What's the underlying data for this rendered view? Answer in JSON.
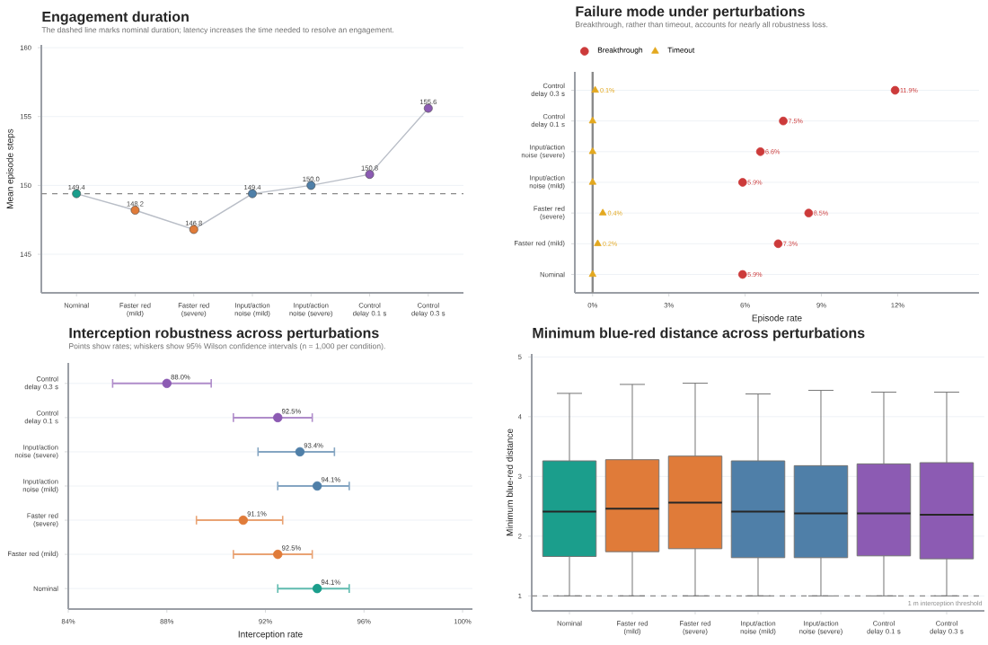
{
  "chart_data": [
    {
      "type": "line",
      "title": "Engagement duration",
      "subtitle": "The dashed line marks nominal duration; latency increases the time needed to resolve an engagement.",
      "ylabel": "Mean episode steps",
      "categories": [
        "Nominal",
        "Faster red (mild)",
        "Faster red (severe)",
        "Input/action noise (mild)",
        "Input/action noise (severe)",
        "Control delay 0.1 s",
        "Control delay 0.3 s"
      ],
      "series": [
        {
          "color": "#b9bec7",
          "colors": [
            "#1b9e8c",
            "#e07b39",
            "#e07b39",
            "#4f7fa8",
            "#4f7fa8",
            "#8c5bb3",
            "#8c5bb3"
          ],
          "values": [
            149.4,
            148.2,
            146.8,
            149.4,
            150.0,
            150.8,
            155.6
          ],
          "value_labels": [
            "149.4",
            "148.2",
            "146.8",
            "149.4",
            "150.0",
            "150.8",
            "155.6"
          ]
        }
      ],
      "marker": "circle",
      "ylim": [
        142.2,
        160.2
      ],
      "yticks": [
        145,
        150,
        155,
        160
      ],
      "grid": "y",
      "ref_lines": [
        {
          "axis": "y",
          "value": 149.4,
          "color": "#8a8a8a",
          "line_style": "dashed"
        }
      ]
    },
    {
      "type": "scatter",
      "orientation": "horizontal",
      "title": "Failure mode under perturbations",
      "subtitle": "Breakthrough, rather than timeout, accounts for nearly all robustness loss.",
      "xlabel": "Episode rate",
      "categories": [
        "Control delay 0.3 s",
        "Control delay 0.1 s",
        "Input/action noise (severe)",
        "Input/action noise (mild)",
        "Faster red (severe)",
        "Faster red (mild)",
        "Nominal"
      ],
      "series": [
        {
          "name": "Breakthrough",
          "color": "#cc3a3a",
          "marker": "circle",
          "values": [
            11.9,
            7.5,
            6.6,
            5.9,
            8.5,
            7.3,
            5.9
          ],
          "value_labels": [
            "11.9%",
            "7.5%",
            "6.6%",
            "5.9%",
            "8.5%",
            "7.3%",
            "5.9%"
          ]
        },
        {
          "name": "Timeout",
          "color": "#e3a81f",
          "marker": "triangle",
          "values": [
            0.1,
            0,
            0,
            0,
            0.4,
            0.2,
            0
          ],
          "value_labels": [
            "0.1%",
            null,
            null,
            null,
            "0.4%",
            "0.2%",
            null
          ]
        }
      ],
      "xlim": [
        -0.7,
        15.2
      ],
      "xticks": [
        {
          "value": 0,
          "label": "0%"
        },
        {
          "value": 3,
          "label": "3%"
        },
        {
          "value": 6,
          "label": "6%"
        },
        {
          "value": 9,
          "label": "9%"
        },
        {
          "value": 12,
          "label": "12%"
        }
      ],
      "grid": "y",
      "legend": "top left",
      "ref_lines": [
        {
          "axis": "x",
          "value": 0,
          "color": "#8a8a8a",
          "line_style": "solid"
        }
      ]
    },
    {
      "type": "scatter",
      "orientation": "horizontal",
      "title": "Interception robustness across perturbations",
      "subtitle": "Points show rates; whiskers show 95% Wilson confidence intervals (n = 1,000 per condition).",
      "xlabel": "Interception rate",
      "categories": [
        "Control delay 0.3 s",
        "Control delay 0.1 s",
        "Input/action noise (severe)",
        "Input/action noise (mild)",
        "Faster red (severe)",
        "Faster red (mild)",
        "Nominal"
      ],
      "values": [
        88.0,
        92.5,
        93.4,
        94.1,
        91.1,
        92.5,
        94.1
      ],
      "errors": [
        [
          85.8,
          89.8
        ],
        [
          90.7,
          93.9
        ],
        [
          91.7,
          94.8
        ],
        [
          92.5,
          95.4
        ],
        [
          89.2,
          92.7
        ],
        [
          90.7,
          93.9
        ],
        [
          92.5,
          95.4
        ]
      ],
      "colors": [
        "#8c5bb3",
        "#8c5bb3",
        "#4f7fa8",
        "#4f7fa8",
        "#e07b39",
        "#e07b39",
        "#1b9e8c"
      ],
      "value_labels": [
        "88.0%",
        "92.5%",
        "93.4%",
        "94.1%",
        "91.1%",
        "92.5%",
        "94.1%"
      ],
      "marker": "circle",
      "xlim": [
        84,
        100.4
      ],
      "xticks": [
        {
          "value": 84,
          "label": "84%"
        },
        {
          "value": 88,
          "label": "88%"
        },
        {
          "value": 92,
          "label": "92%"
        },
        {
          "value": 96,
          "label": "96%"
        },
        {
          "value": 100,
          "label": "100%"
        }
      ],
      "grid": "y"
    },
    {
      "type": "box",
      "title": "Minimum blue-red distance across perturbations",
      "ylabel": "Minimum blue-red distance",
      "categories": [
        "Nominal",
        "Faster red (mild)",
        "Faster red (severe)",
        "Input/action noise (mild)",
        "Input/action noise (severe)",
        "Control delay 0.1 s",
        "Control delay 0.3 s"
      ],
      "colors": [
        "#1b9e8c",
        "#e07b39",
        "#e07b39",
        "#4f7fa8",
        "#4f7fa8",
        "#8c5bb3",
        "#8c5bb3"
      ],
      "boxes": [
        {
          "low": 1.0,
          "q1": 1.66,
          "median": 2.41,
          "q3": 3.26,
          "high": 4.39
        },
        {
          "low": 1.0,
          "q1": 1.74,
          "median": 2.46,
          "q3": 3.28,
          "high": 4.54
        },
        {
          "low": 1.0,
          "q1": 1.79,
          "median": 2.56,
          "q3": 3.34,
          "high": 4.56
        },
        {
          "low": 1.0,
          "q1": 1.64,
          "median": 2.41,
          "q3": 3.26,
          "high": 4.38
        },
        {
          "low": 1.0,
          "q1": 1.64,
          "median": 2.38,
          "q3": 3.18,
          "high": 4.44
        },
        {
          "low": 1.0,
          "q1": 1.67,
          "median": 2.38,
          "q3": 3.21,
          "high": 4.41
        },
        {
          "low": 1.0,
          "q1": 1.62,
          "median": 2.36,
          "q3": 3.23,
          "high": 4.41
        }
      ],
      "ylim": [
        0.75,
        5.05
      ],
      "yticks": [
        1,
        2,
        3,
        4,
        5
      ],
      "grid": "y",
      "ref_lines": [
        {
          "axis": "y",
          "value": 1,
          "label": "1 m interception threshold",
          "color": "#8a8a8a",
          "line_style": "dashed"
        }
      ]
    }
  ]
}
